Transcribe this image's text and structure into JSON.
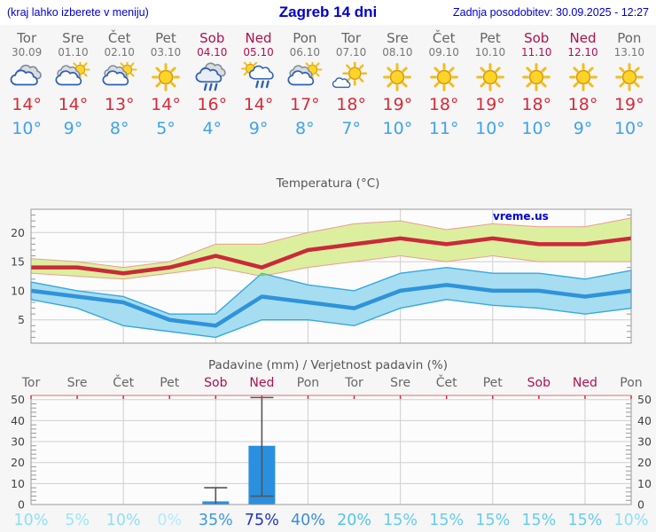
{
  "header": {
    "left_note": "(kraj lahko izberete v meniju)",
    "title": "Zagreb 14 dni",
    "updated": "Zadnja posodobitev: 30.09.2025 - 12:27"
  },
  "colors": {
    "accent_blue": "#0000cc",
    "weekday_text": "#666666",
    "weekend_text": "#b0104f",
    "tmax_text": "#d62b3a",
    "tmin_text": "#3ea3e8"
  },
  "days": [
    {
      "name": "Tor",
      "date": "30.09",
      "weekend": false,
      "icon": "cloudy",
      "tmax": "14°",
      "tmin": "10°"
    },
    {
      "name": "Sre",
      "date": "01.10",
      "weekend": false,
      "icon": "partly-cloudy",
      "tmax": "14°",
      "tmin": "9°"
    },
    {
      "name": "Čet",
      "date": "02.10",
      "weekend": false,
      "icon": "partly-cloudy",
      "tmax": "13°",
      "tmin": "8°"
    },
    {
      "name": "Pet",
      "date": "03.10",
      "weekend": false,
      "icon": "sunny",
      "tmax": "14°",
      "tmin": "5°"
    },
    {
      "name": "Sob",
      "date": "04.10",
      "weekend": true,
      "icon": "rain",
      "tmax": "16°",
      "tmin": "4°"
    },
    {
      "name": "Ned",
      "date": "05.10",
      "weekend": true,
      "icon": "sun-shower",
      "tmax": "14°",
      "tmin": "9°"
    },
    {
      "name": "Pon",
      "date": "06.10",
      "weekend": false,
      "icon": "partly-cloudy",
      "tmax": "17°",
      "tmin": "8°"
    },
    {
      "name": "Tor",
      "date": "07.10",
      "weekend": false,
      "icon": "mostly-sunny",
      "tmax": "18°",
      "tmin": "7°"
    },
    {
      "name": "Sre",
      "date": "08.10",
      "weekend": false,
      "icon": "sunny",
      "tmax": "19°",
      "tmin": "10°"
    },
    {
      "name": "Čet",
      "date": "09.10",
      "weekend": false,
      "icon": "sunny",
      "tmax": "18°",
      "tmin": "11°"
    },
    {
      "name": "Pet",
      "date": "10.10",
      "weekend": false,
      "icon": "sunny",
      "tmax": "19°",
      "tmin": "10°"
    },
    {
      "name": "Sob",
      "date": "11.10",
      "weekend": true,
      "icon": "sunny",
      "tmax": "18°",
      "tmin": "10°"
    },
    {
      "name": "Ned",
      "date": "12.10",
      "weekend": true,
      "icon": "sunny",
      "tmax": "18°",
      "tmin": "9°"
    },
    {
      "name": "Pon",
      "date": "13.10",
      "weekend": false,
      "icon": "sunny",
      "tmax": "19°",
      "tmin": "10°"
    }
  ],
  "chart_data": [
    {
      "type": "line",
      "title": "Temperatura (°C)",
      "watermark": "vreme.us",
      "ylim": [
        1,
        24
      ],
      "yticks": [
        5,
        10,
        15,
        20
      ],
      "grid": true,
      "x_days": [
        "Tor",
        "Sre",
        "Čet",
        "Pet",
        "Sob",
        "Ned",
        "Pon",
        "Tor",
        "Sre",
        "Čet",
        "Pet",
        "Sob",
        "Ned",
        "Pon"
      ],
      "series": [
        {
          "name": "max temperature",
          "role": "line",
          "color": "#cb2939",
          "values": [
            14,
            14,
            13,
            14,
            16,
            14,
            17,
            18,
            19,
            18,
            19,
            18,
            18,
            19
          ]
        },
        {
          "name": "max temperature range",
          "role": "band",
          "fill": "#dcef9f",
          "stroke": "#ed9c8f",
          "upper": [
            15.5,
            15,
            14,
            15,
            18,
            18,
            20,
            21.5,
            22,
            20.5,
            21.5,
            21,
            21,
            22.5
          ],
          "lower": [
            13,
            12.5,
            12,
            13,
            14,
            12.5,
            14,
            15,
            16,
            15,
            16,
            15,
            15,
            15
          ]
        },
        {
          "name": "min temperature",
          "role": "line",
          "color": "#2e93da",
          "values": [
            10,
            9,
            8,
            5,
            4,
            9,
            8,
            7,
            10,
            11,
            10,
            10,
            9,
            10
          ]
        },
        {
          "name": "min temperature range",
          "role": "band",
          "fill": "#a6ddf1",
          "stroke": "#36a8e0",
          "upper": [
            11.5,
            10,
            9,
            6,
            6,
            13,
            11,
            10,
            13,
            14,
            13,
            13,
            12,
            13.5
          ],
          "lower": [
            8.5,
            7,
            4,
            3,
            2,
            5,
            5,
            4,
            7,
            8.5,
            7.5,
            7,
            6,
            7
          ]
        }
      ],
      "band_overlap_color": "#7ccb6e"
    },
    {
      "type": "bar",
      "title": "Padavine (mm) / Verjetnost padavin (%)",
      "categories": [
        "Tor",
        "Sre",
        "Čet",
        "Pet",
        "Sob",
        "Ned",
        "Pon",
        "Tor",
        "Sre",
        "Čet",
        "Pet",
        "Sob",
        "Ned",
        "Pon"
      ],
      "weekend_indices": [
        4,
        5,
        11,
        12
      ],
      "values": [
        0,
        0,
        0,
        0,
        1.5,
        28,
        0,
        0,
        0,
        0,
        0,
        0,
        0,
        0
      ],
      "error_bars": [
        {
          "index": 4,
          "low": 0,
          "high": 8,
          "caps": "top"
        },
        {
          "index": 5,
          "low": 4,
          "high": 51,
          "caps": "both"
        }
      ],
      "probabilities": [
        {
          "label": "10%",
          "color": "#8edff6"
        },
        {
          "label": "5%",
          "color": "#9ce5f8"
        },
        {
          "label": "10%",
          "color": "#8edff6"
        },
        {
          "label": "0%",
          "color": "#b2ebfa"
        },
        {
          "label": "35%",
          "color": "#3e9ae2"
        },
        {
          "label": "75%",
          "color": "#2134c6"
        },
        {
          "label": "40%",
          "color": "#3a90dd"
        },
        {
          "label": "20%",
          "color": "#54c3ec"
        },
        {
          "label": "15%",
          "color": "#65cdf0"
        },
        {
          "label": "15%",
          "color": "#65cdf0"
        },
        {
          "label": "15%",
          "color": "#65cdf0"
        },
        {
          "label": "15%",
          "color": "#65cdf0"
        },
        {
          "label": "15%",
          "color": "#65cdf0"
        },
        {
          "label": "10%",
          "color": "#8edff6"
        }
      ],
      "ylim": [
        0,
        52
      ],
      "yticks": [
        0,
        10,
        20,
        30,
        40,
        50
      ],
      "bar_color": "#2b8fe0",
      "whisker_color": "#555555",
      "top_border_color": "#e89aa4",
      "day_tick_color": "#cc3344"
    }
  ]
}
